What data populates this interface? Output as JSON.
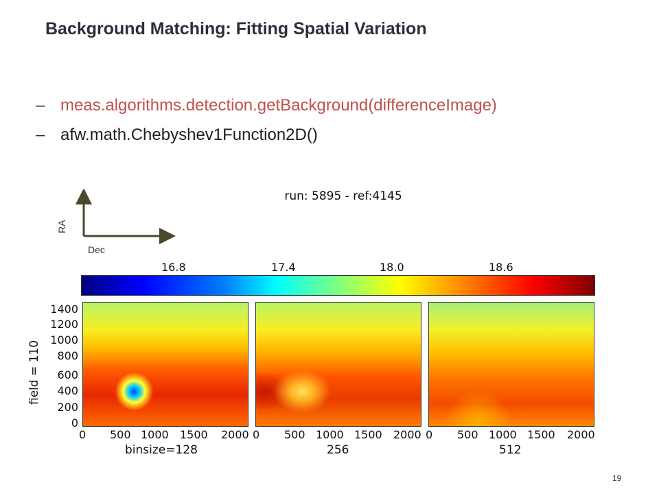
{
  "slide": {
    "title": "Background Matching: Fitting Spatial Variation",
    "bullets": [
      {
        "dash": "–",
        "text": "meas.algorithms.detection.getBackground(differenceImage)",
        "color": "#c0504d"
      },
      {
        "dash": "–",
        "text": "afw.math.Chebyshev1Function2D()",
        "color": "#1f1f1f"
      }
    ],
    "page_number": "19"
  },
  "figure": {
    "title": "run: 5895 - ref:4145",
    "axes_hint": {
      "vertical": "RA",
      "horizontal": "Dec"
    },
    "colorbar_ticks": [
      "16.8",
      "17.4",
      "18.0",
      "18.6"
    ],
    "y_label": "field = 110",
    "y_ticks": [
      "1400",
      "1200",
      "1000",
      "800",
      "600",
      "400",
      "200",
      "0"
    ],
    "x_ticks": [
      "0",
      "500",
      "1000",
      "1500",
      "2000"
    ],
    "panels": [
      {
        "x_label": "binsize=128"
      },
      {
        "x_label": "256"
      },
      {
        "x_label": "512"
      }
    ]
  }
}
